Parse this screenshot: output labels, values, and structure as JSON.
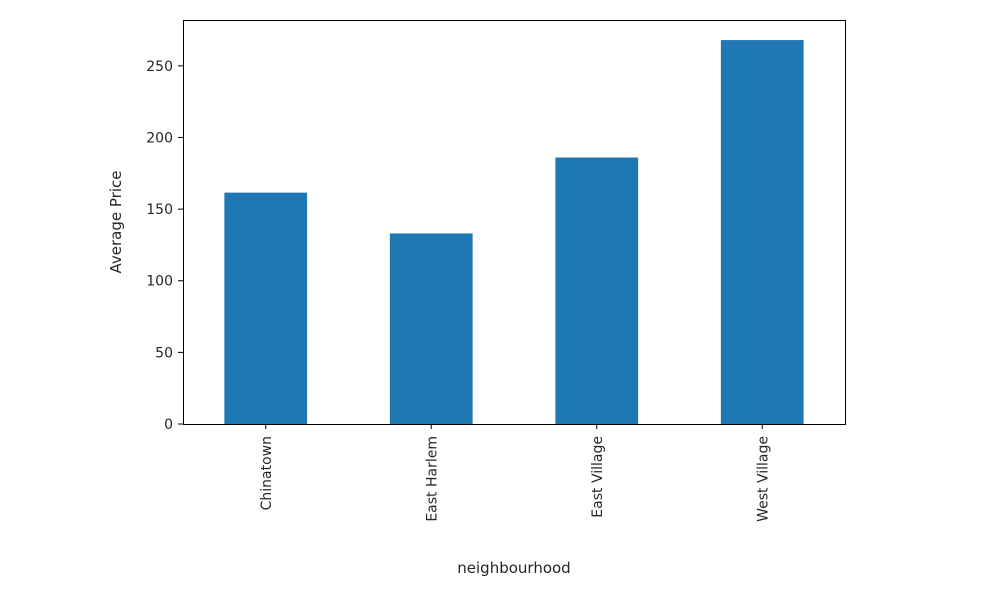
{
  "chart_data": {
    "type": "bar",
    "categories": [
      "Chinatown",
      "East Harlem",
      "East Village",
      "West Village"
    ],
    "values": [
      161.5,
      133,
      186,
      268
    ],
    "title": "",
    "xlabel": "neighbourhood",
    "ylabel": "Average Price",
    "ylim": [
      0,
      282
    ],
    "yticks": [
      0,
      50,
      100,
      150,
      200,
      250
    ],
    "ytick_labels": [
      "0",
      "50",
      "100",
      "150",
      "200",
      "250"
    ],
    "grid": false,
    "legend": "none",
    "bar_color": "#1f77b4",
    "x_tick_rotation": "vertical"
  }
}
